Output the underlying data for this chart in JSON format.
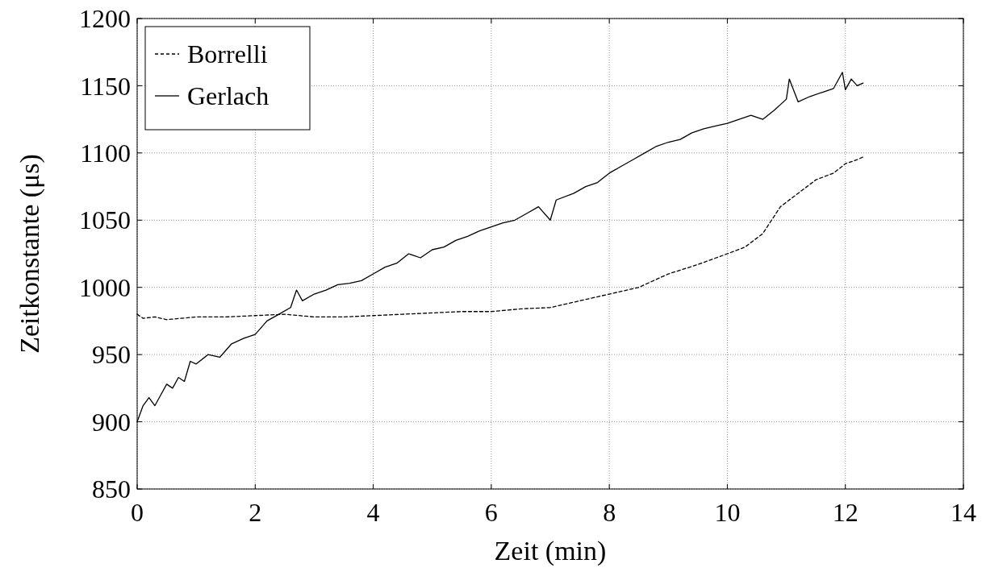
{
  "chart_data": {
    "type": "line",
    "xlabel": "Zeit (min)",
    "ylabel": "Zeitkonstante (μs)",
    "xlim": [
      0,
      14
    ],
    "xticks": [
      0,
      2,
      4,
      6,
      8,
      10,
      12,
      14
    ],
    "ylim": [
      850,
      1200
    ],
    "yticks": [
      850,
      900,
      950,
      1000,
      1050,
      1100,
      1150,
      1200
    ],
    "grid": true,
    "legend": "top left",
    "series": [
      {
        "name": "Borrelli",
        "color": "#000000",
        "line_style": "dashed",
        "x": [
          0,
          0.1,
          0.3,
          0.5,
          1,
          1.5,
          2,
          2.5,
          3,
          3.5,
          4,
          4.5,
          5,
          5.5,
          6,
          6.5,
          7,
          7.5,
          8,
          8.5,
          9,
          9.5,
          10,
          10.3,
          10.6,
          10.9,
          11.2,
          11.5,
          11.8,
          12,
          12.2,
          12.3
        ],
        "values": [
          980,
          977,
          978,
          976,
          978,
          978,
          979,
          980,
          978,
          978,
          979,
          980,
          981,
          982,
          982,
          984,
          985,
          990,
          995,
          1000,
          1010,
          1017,
          1025,
          1030,
          1040,
          1060,
          1070,
          1080,
          1085,
          1092,
          1095,
          1097
        ]
      },
      {
        "name": "Gerlach",
        "color": "#000000",
        "line_style": "solid",
        "x": [
          0,
          0.1,
          0.2,
          0.3,
          0.4,
          0.5,
          0.6,
          0.7,
          0.8,
          0.9,
          1,
          1.2,
          1.4,
          1.6,
          1.8,
          2,
          2.2,
          2.4,
          2.6,
          2.7,
          2.8,
          3,
          3.2,
          3.4,
          3.6,
          3.8,
          4,
          4.2,
          4.4,
          4.6,
          4.8,
          5,
          5.2,
          5.4,
          5.6,
          5.8,
          6,
          6.2,
          6.4,
          6.6,
          6.8,
          7,
          7.1,
          7.4,
          7.6,
          7.8,
          8,
          8.2,
          8.4,
          8.6,
          8.8,
          9,
          9.2,
          9.4,
          9.6,
          9.8,
          10,
          10.2,
          10.4,
          10.6,
          10.8,
          11,
          11.05,
          11.2,
          11.4,
          11.6,
          11.8,
          11.95,
          12,
          12.1,
          12.2,
          12.3
        ],
        "values": [
          900,
          912,
          918,
          912,
          920,
          928,
          925,
          933,
          930,
          945,
          943,
          950,
          948,
          958,
          962,
          965,
          975,
          980,
          985,
          998,
          990,
          995,
          998,
          1002,
          1003,
          1005,
          1010,
          1015,
          1018,
          1025,
          1022,
          1028,
          1030,
          1035,
          1038,
          1042,
          1045,
          1048,
          1050,
          1055,
          1060,
          1050,
          1065,
          1070,
          1075,
          1078,
          1085,
          1090,
          1095,
          1100,
          1105,
          1108,
          1110,
          1115,
          1118,
          1120,
          1122,
          1125,
          1128,
          1125,
          1132,
          1140,
          1155,
          1138,
          1142,
          1145,
          1148,
          1160,
          1147,
          1155,
          1150,
          1152
        ]
      }
    ]
  }
}
